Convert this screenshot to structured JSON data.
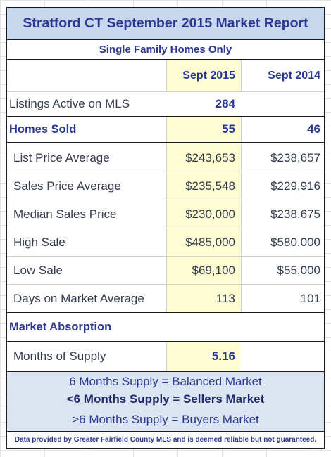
{
  "report": {
    "title": "Stratford CT September 2015 Market Report",
    "subtitle": "Single Family Homes Only",
    "col_headers": [
      "Sept 2015",
      "Sept 2014"
    ],
    "listings_active": {
      "label": "Listings Active on MLS",
      "sept2015": "284",
      "sept2014": ""
    },
    "homes_sold": {
      "label": "Homes Sold",
      "sept2015": "55",
      "sept2014": "46"
    },
    "rows": [
      {
        "label": "List Price Average",
        "sept2015": "$243,653",
        "sept2014": "$238,657"
      },
      {
        "label": "Sales Price Average",
        "sept2015": "$235,548",
        "sept2014": "$229,916"
      },
      {
        "label": "Median Sales Price",
        "sept2015": "$230,000",
        "sept2014": "$238,675"
      },
      {
        "label": "High Sale",
        "sept2015": "$485,000",
        "sept2014": "$580,000"
      },
      {
        "label": "Low Sale",
        "sept2015": "$69,100",
        "sept2014": "$55,000"
      },
      {
        "label": "Days on Market Average",
        "sept2015": "113",
        "sept2014": "101"
      }
    ],
    "absorption_header": "Market Absorption",
    "months_supply": {
      "label": "Months of Supply",
      "sept2015": "5.16",
      "sept2014": ""
    },
    "legend": [
      "6 Months Supply = Balanced Market",
      "<6 Months Supply = Sellers Market",
      ">6 Months Supply = Buyers Market"
    ],
    "disclaimer": "Data provided by Greater Fairfield County MLS and is deemed reliable but not guaranteed."
  },
  "colors": {
    "title_bg": "#c6d7ee",
    "highlight_col": "#fdfcd3",
    "footer_bg": "#dbe5f1",
    "accent_text": "#2b3990"
  }
}
